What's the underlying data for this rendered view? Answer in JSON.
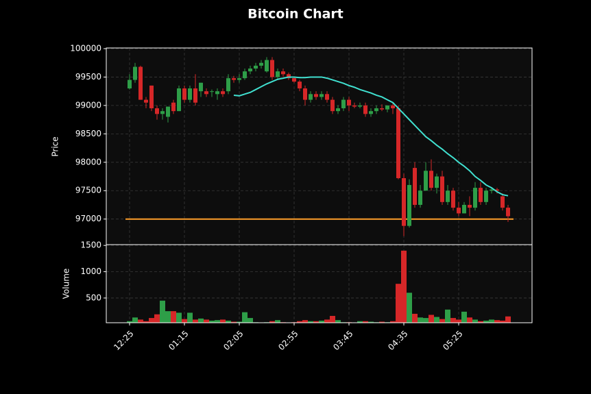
{
  "chart_data": {
    "type": "candlestick",
    "title": "Bitcoin Chart",
    "ylabel": "Price",
    "categories": [
      "12:25",
      null,
      null,
      null,
      null,
      null,
      null,
      null,
      null,
      null,
      "01:15",
      null,
      null,
      null,
      null,
      null,
      null,
      null,
      null,
      null,
      "02:05",
      null,
      null,
      null,
      null,
      null,
      null,
      null,
      null,
      null,
      "02:55",
      null,
      null,
      null,
      null,
      null,
      null,
      null,
      null,
      null,
      "03:45",
      null,
      null,
      null,
      null,
      null,
      null,
      null,
      null,
      null,
      "04:35",
      null,
      null,
      null,
      null,
      null,
      null,
      null,
      null,
      null,
      "05:25",
      null,
      null,
      null,
      null,
      null,
      null,
      null,
      null,
      null
    ],
    "open": [
      99300,
      99450,
      99680,
      99100,
      99350,
      98950,
      98850,
      98800,
      99050,
      98900,
      99300,
      99100,
      99300,
      99250,
      99250,
      99250,
      99200,
      99250,
      99250,
      99480,
      99450,
      99480,
      99600,
      99650,
      99700,
      99600,
      99800,
      99500,
      99600,
      99550,
      99480,
      99420,
      99300,
      99100,
      99200,
      99150,
      99200,
      99100,
      98900,
      98950,
      99100,
      99000,
      98980,
      99000,
      98850,
      98900,
      98950,
      98930,
      99000,
      98950,
      97720,
      96880,
      97900,
      97250,
      97500,
      97850,
      97550,
      97750,
      97300,
      97500,
      97200,
      97100,
      97250,
      97200,
      97550,
      97300,
      97500,
      97520,
      97400,
      97200
    ],
    "high": [
      99550,
      99750,
      99700,
      99150,
      99350,
      99000,
      98950,
      98950,
      99100,
      99350,
      99350,
      99350,
      99550,
      99400,
      99300,
      99280,
      99300,
      99300,
      99550,
      99520,
      99550,
      99650,
      99700,
      99750,
      99800,
      99850,
      99850,
      99650,
      99650,
      99580,
      99500,
      99450,
      99350,
      99250,
      99250,
      99250,
      99250,
      99150,
      99000,
      99150,
      99150,
      99050,
      99050,
      99050,
      98950,
      99000,
      99020,
      99000,
      99050,
      99000,
      97800,
      97700,
      98000,
      97600,
      98000,
      98050,
      97800,
      97850,
      97600,
      97550,
      97300,
      97300,
      97400,
      97650,
      97650,
      97550,
      97550,
      97550,
      97450,
      97250
    ],
    "low": [
      99280,
      99400,
      99100,
      98950,
      98900,
      98750,
      98750,
      98700,
      98850,
      98900,
      99050,
      99050,
      99000,
      99150,
      99150,
      99150,
      99100,
      99150,
      99200,
      99400,
      99400,
      99450,
      99550,
      99600,
      99650,
      99580,
      99450,
      99450,
      99500,
      99450,
      99400,
      99250,
      99000,
      99050,
      99100,
      99100,
      99050,
      98850,
      98850,
      98900,
      98900,
      98950,
      98950,
      98800,
      98800,
      98850,
      98900,
      98880,
      98850,
      97700,
      96700,
      96850,
      97200,
      97200,
      97500,
      97500,
      97450,
      97250,
      97250,
      97150,
      97050,
      97100,
      97050,
      97150,
      97250,
      97250,
      97450,
      97450,
      97150,
      96950
    ],
    "close": [
      99450,
      99680,
      99100,
      99050,
      98950,
      98850,
      98900,
      98980,
      98900,
      99300,
      99100,
      99300,
      99050,
      99400,
      99200,
      99250,
      99250,
      99200,
      99480,
      99450,
      99480,
      99600,
      99650,
      99700,
      99750,
      99800,
      99500,
      99600,
      99550,
      99480,
      99420,
      99300,
      99100,
      99200,
      99150,
      99200,
      99100,
      98900,
      98950,
      99100,
      99000,
      98980,
      99000,
      98850,
      98900,
      98950,
      98930,
      99000,
      98950,
      97720,
      96880,
      97600,
      97250,
      97500,
      97850,
      97550,
      97750,
      97300,
      97500,
      97200,
      97100,
      97250,
      97200,
      97550,
      97300,
      97500,
      97520,
      97500,
      97200,
      97050
    ],
    "up_color": "#2e9e48",
    "down_color": "#d62728",
    "ylim": [
      96550,
      100012
    ],
    "yticks": [
      97000,
      97500,
      98000,
      98500,
      99000,
      99500,
      100000
    ],
    "grid": true,
    "ma": {
      "color": "#40e0d0",
      "values": [
        null,
        null,
        null,
        null,
        null,
        null,
        null,
        null,
        null,
        null,
        null,
        null,
        null,
        null,
        null,
        null,
        null,
        null,
        null,
        99180,
        99170,
        99200,
        99230,
        99280,
        99330,
        99380,
        99420,
        99460,
        99480,
        99500,
        99500,
        99490,
        99490,
        99500,
        99500,
        99500,
        99480,
        99450,
        99420,
        99390,
        99350,
        99320,
        99280,
        99250,
        99220,
        99180,
        99150,
        99100,
        99050,
        98950,
        98850,
        98750,
        98650,
        98550,
        98450,
        98380,
        98300,
        98230,
        98150,
        98080,
        98000,
        97930,
        97850,
        97750,
        97680,
        97600,
        97550,
        97480,
        97430,
        97410
      ]
    },
    "hline": {
      "value": 97000,
      "color": "#ff9f2a"
    },
    "volume": {
      "ylabel": "Volume",
      "ylim": [
        30,
        1515
      ],
      "yticks": [
        500,
        1000,
        1500
      ],
      "values": [
        60,
        130,
        90,
        60,
        120,
        190,
        450,
        250,
        250,
        220,
        100,
        220,
        90,
        110,
        90,
        70,
        80,
        90,
        70,
        50,
        50,
        230,
        120,
        40,
        30,
        40,
        60,
        80,
        40,
        30,
        40,
        60,
        80,
        60,
        60,
        70,
        90,
        160,
        80,
        40,
        40,
        30,
        60,
        60,
        50,
        40,
        50,
        40,
        60,
        770,
        1400,
        600,
        200,
        130,
        120,
        180,
        140,
        100,
        280,
        120,
        90,
        240,
        130,
        90,
        60,
        70,
        90,
        80,
        70,
        150
      ]
    }
  }
}
